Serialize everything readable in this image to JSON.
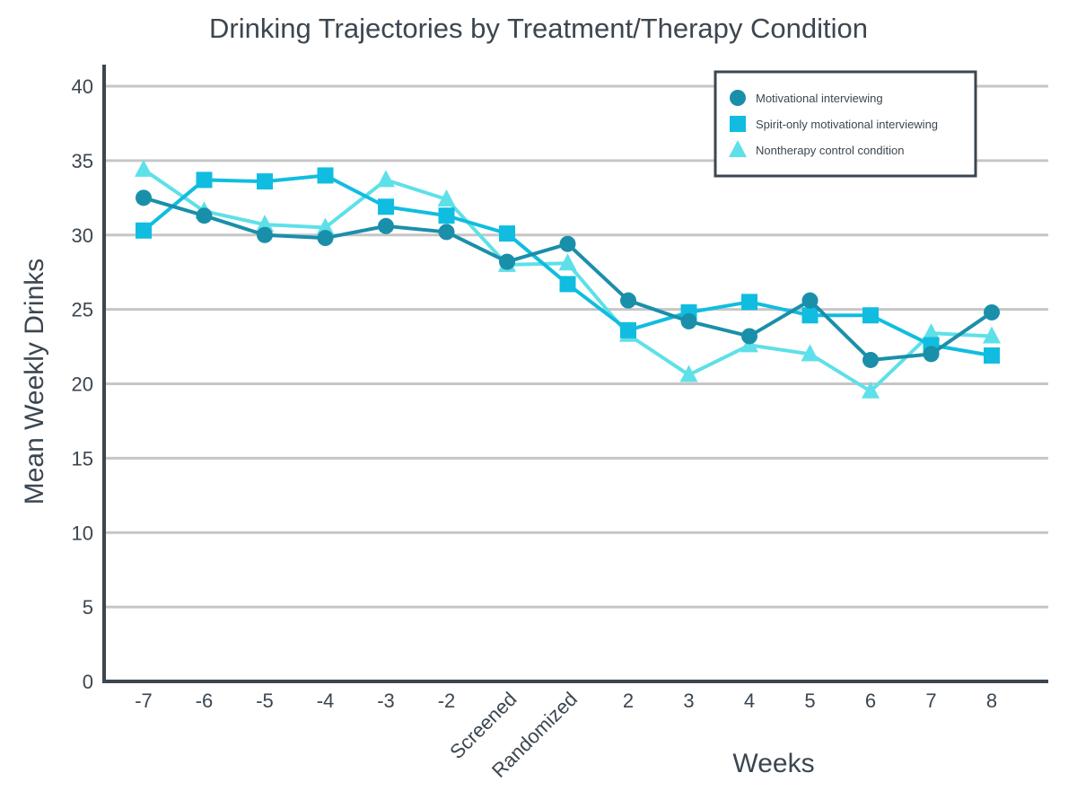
{
  "chart_data": {
    "type": "line",
    "title": "Drinking Trajectories by Treatment/Therapy Condition",
    "xlabel": "Weeks",
    "ylabel": "Mean Weekly Drinks",
    "categories": [
      "-7",
      "-6",
      "-5",
      "-4",
      "-3",
      "-2",
      "Screened",
      "Randomized",
      "2",
      "3",
      "4",
      "5",
      "6",
      "7",
      "8"
    ],
    "ylim": [
      0,
      40
    ],
    "yticks": [
      0,
      5,
      10,
      15,
      20,
      25,
      30,
      35,
      40
    ],
    "grid": true,
    "legend_position": "top-right",
    "series": [
      {
        "name": "Motivational interviewing",
        "marker": "circle",
        "color": "#1a8faa",
        "values": [
          32.5,
          31.3,
          30.0,
          29.8,
          30.6,
          30.2,
          28.2,
          29.4,
          25.6,
          24.2,
          23.2,
          25.6,
          21.6,
          22.0,
          24.8
        ]
      },
      {
        "name": "Spirit-only motivational interviewing",
        "marker": "square",
        "color": "#10bde0",
        "values": [
          30.3,
          33.7,
          33.6,
          34.0,
          31.9,
          31.3,
          30.1,
          26.7,
          23.6,
          24.8,
          25.5,
          24.6,
          24.6,
          22.6,
          21.9
        ]
      },
      {
        "name": "Nontherapy control condition",
        "marker": "triangle",
        "color": "#5ee0e8",
        "values": [
          34.4,
          31.6,
          30.7,
          30.5,
          33.7,
          32.4,
          28.0,
          28.1,
          23.3,
          20.6,
          22.6,
          22.0,
          19.5,
          23.4,
          23.2
        ]
      }
    ]
  }
}
